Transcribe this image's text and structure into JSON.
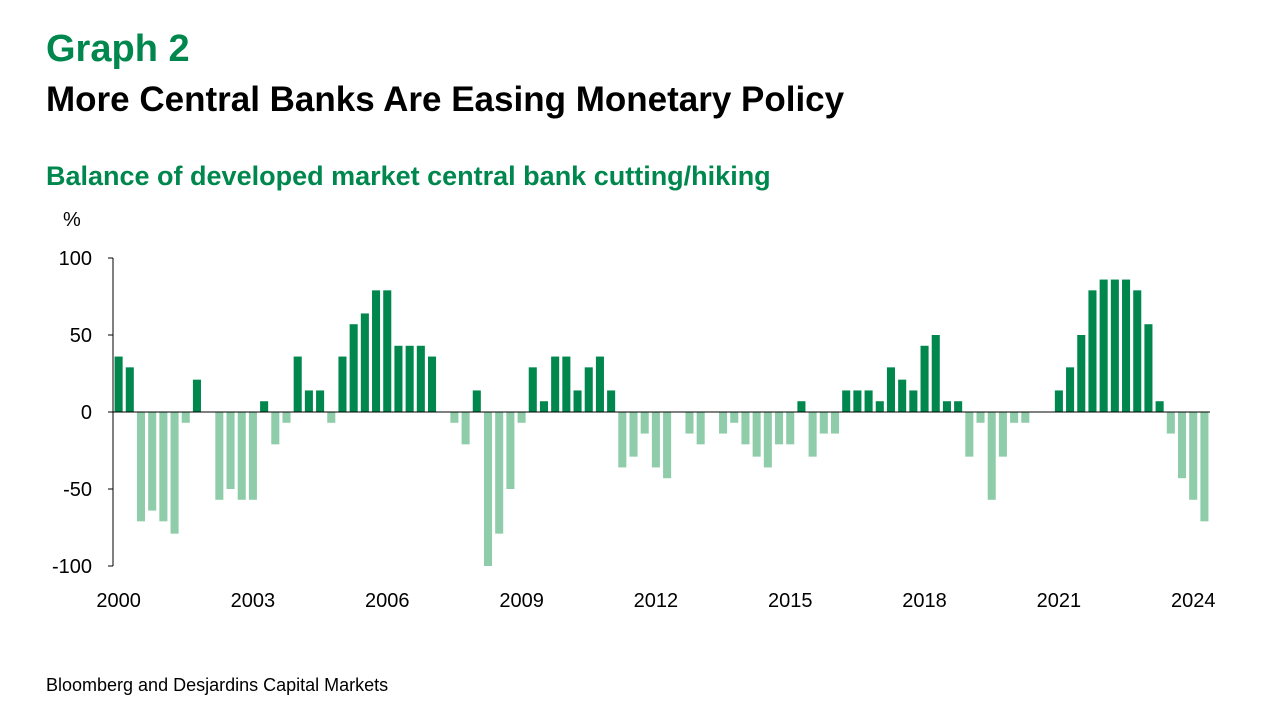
{
  "header": {
    "graph_number": "Graph 2",
    "title": "More Central Banks Are Easing Monetary Policy"
  },
  "subtitle": "Balance of developed market central bank cutting/hiking",
  "source": "Bloomberg and Desjardins Capital Markets",
  "colors": {
    "positive": "#00874E",
    "negative": "#8FCDAA",
    "accent": "#00874E"
  },
  "chart_data": {
    "type": "bar",
    "unit_label": "%",
    "ylim": [
      -100,
      100
    ],
    "y_ticks": [
      "100",
      "50",
      "0",
      "-50",
      "-100"
    ],
    "x_tick_labels": [
      "2000",
      "2003",
      "2006",
      "2009",
      "2012",
      "2015",
      "2018",
      "2021",
      "2024"
    ],
    "x_start": "2000 Q1",
    "frequency": "quarterly",
    "grid": false,
    "legend": "none",
    "values": [
      36,
      29,
      -71,
      -64,
      -71,
      -79,
      -7,
      21,
      0,
      -57,
      -50,
      -57,
      -57,
      7,
      -21,
      -7,
      36,
      14,
      14,
      -7,
      36,
      57,
      64,
      79,
      79,
      43,
      43,
      43,
      36,
      0,
      -7,
      -21,
      14,
      -100,
      -79,
      -50,
      -7,
      29,
      7,
      36,
      36,
      14,
      29,
      36,
      14,
      -36,
      -29,
      -14,
      -36,
      -43,
      0,
      -14,
      -21,
      0,
      -14,
      -7,
      -21,
      -29,
      -36,
      -21,
      -21,
      7,
      -29,
      -14,
      -14,
      14,
      14,
      14,
      7,
      29,
      21,
      14,
      43,
      50,
      7,
      7,
      -29,
      -7,
      -57,
      -29,
      -7,
      -7,
      0,
      0,
      14,
      29,
      50,
      79,
      86,
      86,
      86,
      79,
      57,
      7,
      -14,
      -43,
      -57,
      -71
    ]
  }
}
